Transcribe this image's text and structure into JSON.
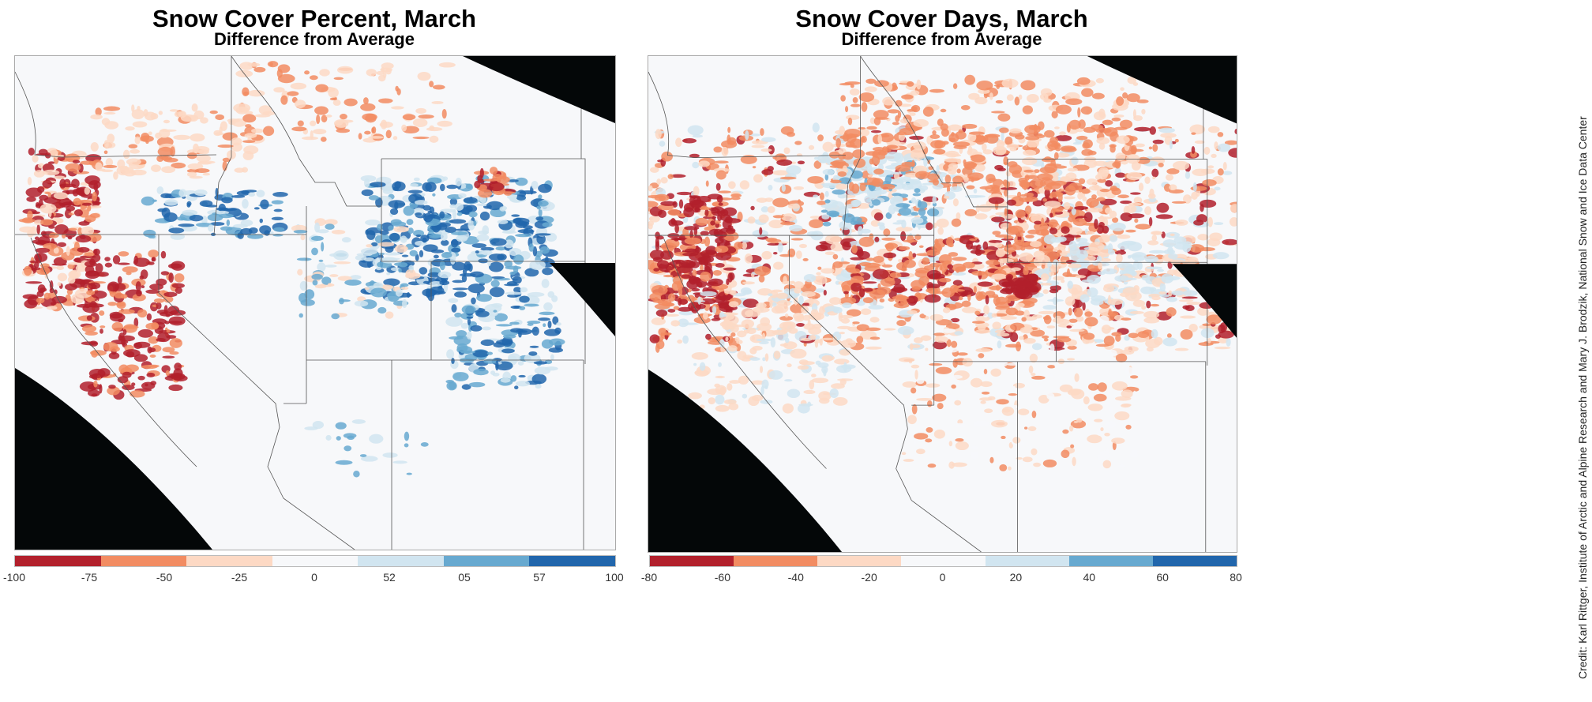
{
  "left_panel": {
    "title": "Snow Cover Percent, March",
    "subtitle": "Difference from Average",
    "colorbar_labels": [
      "-100",
      "-75",
      "-50",
      "-25",
      "0",
      "52",
      "05",
      "57",
      "100"
    ]
  },
  "right_panel": {
    "title": "Snow Cover Days, March",
    "subtitle": "Difference from Average",
    "colorbar_labels": [
      "-80",
      "-60",
      "-40",
      "-20",
      "0",
      "20",
      "40",
      "60",
      "80"
    ]
  },
  "colors": [
    "#b2202c",
    "#f28c62",
    "#fdd9c4",
    "#f7f8fa",
    "#d1e5f0",
    "#67a9d0",
    "#2166ac"
  ],
  "credit": "Credit: Karl Rittger, Institute of Arctic and Alpine Research and Mary J. Brodzik, National Snow and Ice Data Center"
}
